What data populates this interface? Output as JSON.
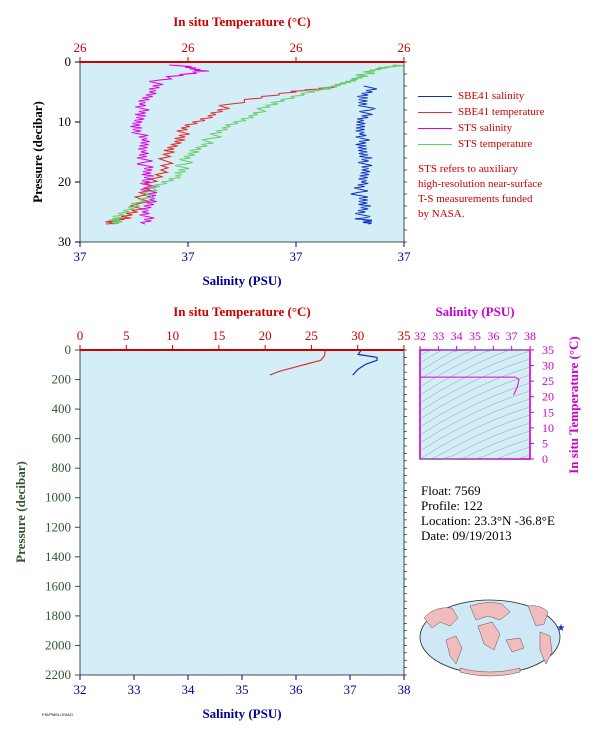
{
  "colors": {
    "plot_bg": "#d4eef8",
    "sbe_salinity": "#1030c0",
    "sbe_temperature": "#e03030",
    "sts_salinity": "#e000e0",
    "sts_temperature": "#66cc66",
    "temperature_axis": "#cc0000",
    "salinity_axis": "#000099",
    "pressure_axis_bottom": "#335533",
    "ts_axis": "#cc00cc",
    "land": "#f2bcbc",
    "ocean": "#cfe8f6"
  },
  "chart_data": [
    {
      "type": "line",
      "top_axis_label": "In situ Temperature (°C)",
      "top_ticks": [
        "26",
        "26",
        "26",
        "26"
      ],
      "bottom_axis_label": "Salinity (PSU)",
      "bottom_ticks": [
        "37",
        "37",
        "37",
        "37"
      ],
      "ylabel": "Pressure (decibar)",
      "yticks": [
        "0",
        "10",
        "20",
        "30"
      ],
      "ylim": [
        0,
        30
      ],
      "y_reversed": true,
      "series": [
        {
          "name": "SBE41 salinity",
          "axis": "bottom",
          "color_key": "sbe_salinity",
          "y": [
            4,
            6,
            8,
            10,
            12,
            14,
            16,
            18,
            20,
            22,
            24,
            26,
            27
          ],
          "x": [
            0.9,
            0.87,
            0.89,
            0.86,
            0.88,
            0.86,
            0.89,
            0.87,
            0.88,
            0.86,
            0.88,
            0.87,
            0.89
          ]
        },
        {
          "name": "SBE41 temperature",
          "axis": "top",
          "color_key": "sbe_temperature",
          "y": [
            4,
            5,
            7,
            9,
            11,
            13,
            15,
            18,
            21,
            24,
            26,
            27
          ],
          "x": [
            0.8,
            0.65,
            0.46,
            0.4,
            0.33,
            0.3,
            0.28,
            0.25,
            0.21,
            0.18,
            0.14,
            0.08
          ]
        },
        {
          "name": "STS salinity",
          "axis": "bottom",
          "color_key": "sts_salinity",
          "y": [
            0.5,
            1.5,
            3,
            5,
            7,
            9,
            11,
            13,
            15,
            17,
            19,
            21,
            23,
            25,
            27
          ],
          "x": [
            0.3,
            0.38,
            0.24,
            0.22,
            0.2,
            0.18,
            0.18,
            0.19,
            0.2,
            0.2,
            0.21,
            0.21,
            0.22,
            0.21,
            0.2
          ]
        },
        {
          "name": "STS temperature",
          "axis": "top",
          "color_key": "sts_temperature",
          "y": [
            0.5,
            1,
            2,
            3,
            4,
            5,
            7,
            9,
            11,
            13,
            15,
            17,
            19,
            21,
            24,
            26,
            27
          ],
          "x": [
            0.99,
            0.93,
            0.88,
            0.84,
            0.8,
            0.7,
            0.6,
            0.52,
            0.45,
            0.4,
            0.35,
            0.32,
            0.3,
            0.24,
            0.16,
            0.12,
            0.1
          ]
        }
      ],
      "legend": [
        {
          "label": "SBE41 salinity",
          "color_key": "sbe_salinity"
        },
        {
          "label": "SBE41 temperature",
          "color_key": "sbe_temperature"
        },
        {
          "label": "STS salinity",
          "color_key": "sts_salinity"
        },
        {
          "label": "STS temperature",
          "color_key": "sts_temperature"
        }
      ],
      "legend_note": [
        "STS refers to auxiliary",
        "high-resolution near-surface",
        "T-S measurements funded",
        "by NASA."
      ]
    },
    {
      "type": "line",
      "top_axis_label": "In situ Temperature (°C)",
      "top_ticks": [
        "0",
        "5",
        "10",
        "15",
        "20",
        "25",
        "30",
        "35"
      ],
      "xlim_top": [
        0,
        35
      ],
      "bottom_axis_label": "Salinity (PSU)",
      "bottom_ticks": [
        "32",
        "33",
        "34",
        "35",
        "36",
        "37",
        "38"
      ],
      "xlim_bottom": [
        32,
        38
      ],
      "ylabel": "Pressure (decibar)",
      "yticks": [
        "0",
        "200",
        "400",
        "600",
        "800",
        "1000",
        "1200",
        "1400",
        "1600",
        "1800",
        "2000",
        "2200"
      ],
      "ylim": [
        0,
        2200
      ],
      "y_reversed": true,
      "series": [
        {
          "name": "SBE41 temperature",
          "axis": "top",
          "color_key": "sbe_temperature",
          "x": [
            26.5,
            26.4,
            26.0,
            24.5,
            23.0,
            21.5,
            20.5
          ],
          "y": [
            5,
            40,
            70,
            95,
            120,
            145,
            170
          ]
        },
        {
          "name": "SBE41 salinity",
          "axis": "bottom",
          "color_key": "sbe_salinity",
          "x": [
            37.2,
            37.15,
            37.5,
            37.5,
            37.3,
            37.15,
            37.05
          ],
          "y": [
            5,
            30,
            50,
            70,
            95,
            130,
            170
          ]
        }
      ]
    },
    {
      "type": "line",
      "top_axis_label": "Salinity (PSU)",
      "top_ticks": [
        "32",
        "33",
        "34",
        "35",
        "36",
        "37",
        "38"
      ],
      "xlim": [
        32,
        38
      ],
      "right_axis_label": "In situ Temperature (°C)",
      "right_ticks": [
        "0",
        "5",
        "10",
        "15",
        "20",
        "25",
        "30",
        "35"
      ],
      "ylim": [
        0,
        35
      ],
      "series": [
        {
          "name": "T-S",
          "color_key": "sts_salinity",
          "x": [
            32.0,
            37.2,
            37.4,
            37.3,
            37.1
          ],
          "y": [
            26.3,
            26.3,
            25.5,
            23.0,
            20.5
          ]
        }
      ]
    }
  ],
  "float_info": {
    "float_label": "Float:",
    "float_value": "7569",
    "profile_label": "Profile:",
    "profile_value": "122",
    "location_label": "Location:",
    "location_value": "23.3°N  -36.8°E",
    "date_label": "Date:",
    "date_value": "09/19/2013"
  },
  "map": {
    "marker": "★"
  },
  "credit": "FSI/PMEL/JISAO"
}
